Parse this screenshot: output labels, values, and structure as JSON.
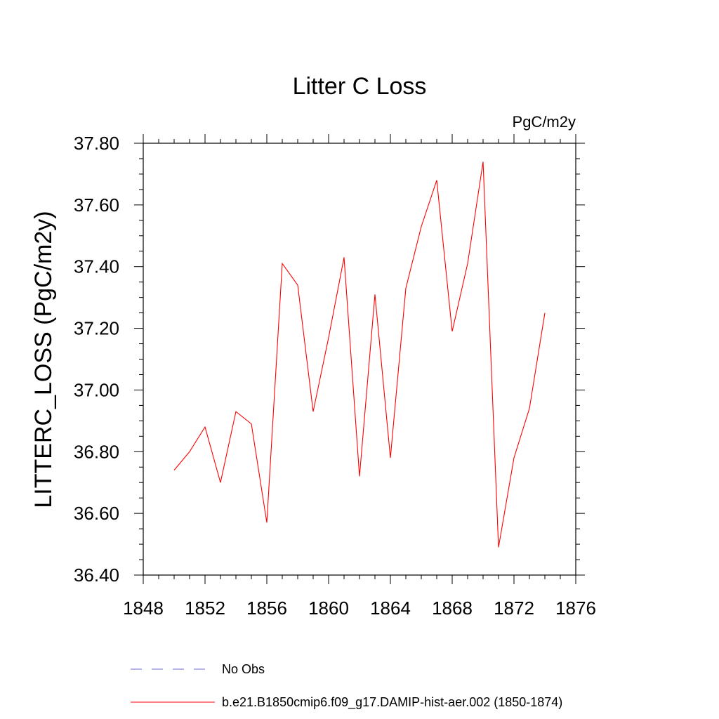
{
  "chart_data": {
    "type": "line",
    "title": "Litter C Loss",
    "units_label": "PgC/m2y",
    "ylabel": "LITTERC_LOSS  (PgC/m2y)",
    "xlabel": "",
    "xlim": [
      1848,
      1876
    ],
    "ylim": [
      36.4,
      37.8
    ],
    "x_ticks": [
      "1848",
      "1852",
      "1856",
      "1860",
      "1864",
      "1868",
      "1872",
      "1876"
    ],
    "y_ticks": [
      "36.40",
      "36.60",
      "36.80",
      "37.00",
      "37.20",
      "37.40",
      "37.60",
      "37.80"
    ],
    "grid": false,
    "legend_position": "bottom",
    "series": [
      {
        "name": "No Obs",
        "color": "#6b6bd6",
        "style": "dashed",
        "x": [],
        "values": []
      },
      {
        "name": "b.e21.B1850cmip6.f09_g17.DAMIP-hist-aer.002 (1850-1874)",
        "color": "#ff0000",
        "style": "solid",
        "x": [
          1850,
          1851,
          1852,
          1853,
          1854,
          1855,
          1856,
          1857,
          1858,
          1859,
          1860,
          1861,
          1862,
          1863,
          1864,
          1865,
          1866,
          1867,
          1868,
          1869,
          1870,
          1871,
          1872,
          1873,
          1874
        ],
        "values": [
          36.74,
          36.8,
          36.88,
          36.7,
          36.93,
          36.89,
          36.57,
          37.41,
          37.34,
          36.93,
          37.17,
          37.43,
          36.72,
          37.31,
          36.78,
          37.33,
          37.53,
          37.68,
          37.19,
          37.41,
          37.74,
          36.49,
          36.78,
          36.94,
          37.25
        ]
      }
    ]
  }
}
